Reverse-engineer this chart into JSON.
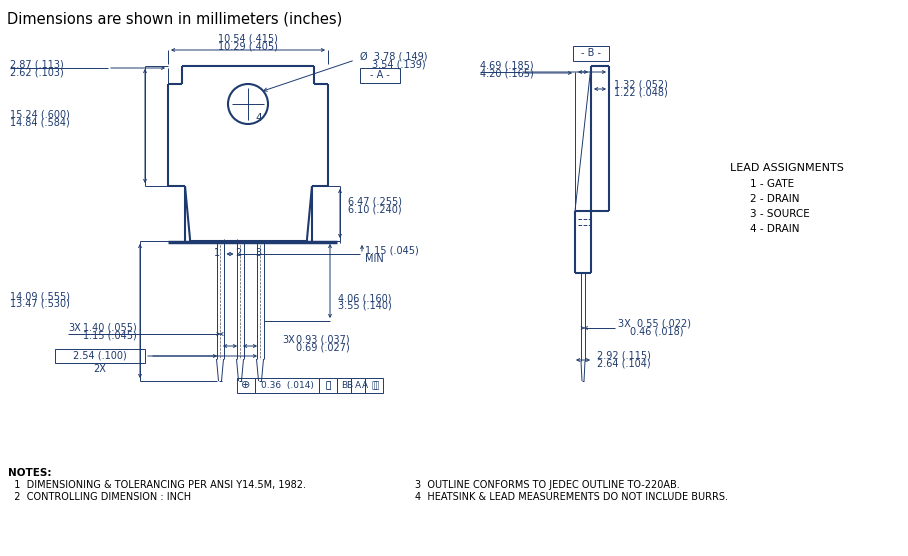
{
  "title": "Dimensions are shown in millimeters (inches)",
  "title_color": "#000000",
  "title_fontsize": 10.5,
  "dim_color": "#1e3a6e",
  "bg_color": "#ffffff",
  "lead_assignments_title": "LEAD ASSIGNMENTS",
  "lead_assignments": [
    "1 - GATE",
    "2 - DRAIN",
    "3 - SOURCE",
    "4 - DRAIN"
  ],
  "notes_left": [
    "NOTES:",
    "  1  DIMENSIONING & TOLERANCING PER ANSI Y14.5M, 1982.",
    "  2  CONTROLLING DIMENSION : INCH"
  ],
  "notes_right": [
    "3  OUTLINE CONFORMS TO JEDEC OUTLINE TO-220AB.",
    "4  HEATSINK & LEAD MEASUREMENTS DO NOT INCLUDE BURRS."
  ]
}
